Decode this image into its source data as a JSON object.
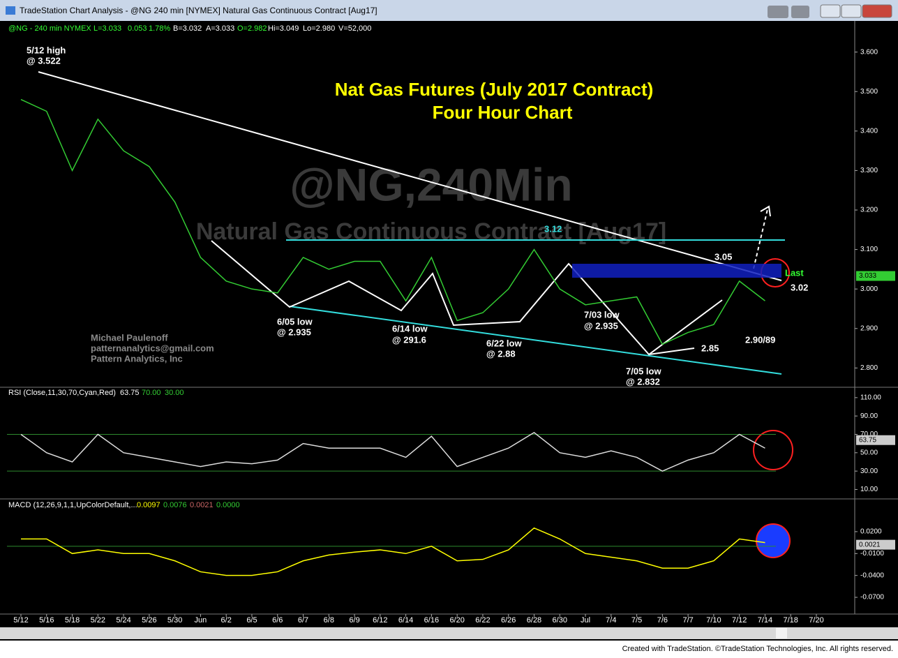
{
  "window_title": "TradeStation Chart Analysis - @NG 240 min [NYMEX] Natural Gas Continuous Contract [Aug17]",
  "header": [
    "@NG - 240 min  NYMEX",
    "L=3.033",
    "0.053",
    "1.78%",
    "B=3.032",
    "A=3.033",
    "O=2.982",
    "Hi=3.049",
    "Lo=2.980",
    "V=52,000"
  ],
  "title": [
    "Nat Gas Futures (July 2017 Contract)",
    "Four Hour Chart"
  ],
  "watermark": [
    "@NG,240Min",
    "Natural Gas Continuous Contract [Aug17]"
  ],
  "author": [
    "Michael Paulenoff",
    "patternanalytics@gmail.com",
    "Pattern Analytics, Inc"
  ],
  "annotations": [
    "5/12 high",
    "@ 3.522",
    "3.12",
    "6/05 low",
    "@ 2.935",
    "6/14 low",
    "@ 291.6",
    "6/22 low",
    "@ 2.88",
    "7/03 low",
    "@ 2.935",
    "7/05 low",
    "@ 2.832",
    "2.85",
    "2.90/89",
    "3.05",
    "Last",
    "3.02"
  ],
  "status": "Created with TradeStation. ©TradeStation Technologies, Inc. All rights reserved.",
  "chart_data": [
    {
      "type": "line",
      "categories": [
        "5/12",
        "5/16",
        "5/18",
        "5/22",
        "5/24",
        "5/26",
        "5/30",
        "Jun",
        "6/2",
        "6/5",
        "6/6",
        "6/7",
        "6/8",
        "6/9",
        "6/12",
        "6/14",
        "6/16",
        "6/20",
        "6/22",
        "6/26",
        "6/28",
        "6/30",
        "Jul",
        "7/4",
        "7/5",
        "7/6",
        "7/7",
        "7/10",
        "7/12",
        "7/14",
        "7/18",
        "7/20"
      ],
      "values": [
        3.48,
        3.45,
        3.3,
        3.43,
        3.35,
        3.31,
        3.22,
        3.08,
        3.02,
        3.0,
        2.99,
        3.08,
        3.05,
        3.07,
        3.07,
        2.97,
        3.08,
        2.92,
        2.94,
        3.0,
        3.1,
        3.0,
        2.96,
        2.97,
        2.98,
        2.86,
        2.89,
        2.91,
        3.02,
        2.97,
        null,
        null
      ],
      "color": "#33cc33",
      "last": {
        "value": 3.033,
        "label": "3.033"
      },
      "ylim": [
        2.76,
        3.67
      ],
      "yticks": [
        {
          "value": 3.6,
          "label": "3.600"
        },
        {
          "value": 3.5,
          "label": "3.500"
        },
        {
          "value": 3.4,
          "label": "3.400"
        },
        {
          "value": 3.3,
          "label": "3.300"
        },
        {
          "value": 3.2,
          "label": "3.200"
        },
        {
          "value": 3.1,
          "label": "3.100"
        },
        {
          "value": 3.0,
          "label": "3.000"
        },
        {
          "value": 2.9,
          "label": "2.900"
        },
        {
          "value": 2.8,
          "label": "2.800"
        }
      ]
    },
    {
      "type": "line",
      "title": "RSI (Close,11,30,70,Cyan,Red)",
      "values": [
        70,
        50,
        40,
        70,
        50,
        45,
        40,
        35,
        40,
        38,
        42,
        60,
        55,
        55,
        55,
        45,
        68,
        35,
        45,
        55,
        72,
        50,
        45,
        52,
        45,
        30,
        42,
        50,
        70,
        55,
        null,
        null
      ],
      "color": "#dddddd",
      "last": {
        "value": 63.75,
        "label": "63.75"
      },
      "bands": [
        {
          "value": 70,
          "label": "70.00"
        },
        {
          "value": 30,
          "label": "30.00"
        }
      ],
      "ylim": [
        2,
        119
      ],
      "yticks": [
        {
          "value": 110,
          "label": "110.00"
        },
        {
          "value": 90,
          "label": "90.00"
        },
        {
          "value": 70,
          "label": "70.00"
        },
        {
          "value": 50,
          "label": "50.00"
        },
        {
          "value": 30,
          "label": "30.00"
        },
        {
          "value": 10,
          "label": "10.00"
        }
      ]
    },
    {
      "type": "line",
      "title": "MACD (12,26,9,1,1,UpColorDefault,...",
      "readouts": [
        "0.0097",
        "0.0076",
        "0.0021"
      ],
      "values": [
        0.01,
        0.01,
        -0.01,
        -0.005,
        -0.01,
        -0.01,
        -0.02,
        -0.035,
        -0.04,
        -0.04,
        -0.035,
        -0.02,
        -0.012,
        -0.008,
        -0.005,
        -0.01,
        0.0,
        -0.02,
        -0.018,
        -0.005,
        0.025,
        0.01,
        -0.01,
        -0.015,
        -0.02,
        -0.03,
        -0.03,
        -0.02,
        0.01,
        0.005,
        null,
        null
      ],
      "color": "#ffff00",
      "last": {
        "value": 0.0021,
        "label": "0.0021"
      },
      "bands": [
        {
          "value": 0,
          "label": "0.0000"
        }
      ],
      "ylim": [
        -0.091,
        0.062
      ],
      "yticks": [
        {
          "value": 0.02,
          "label": "0.0200"
        },
        {
          "value": -0.01,
          "label": "-0.0100"
        },
        {
          "value": -0.04,
          "label": "-0.0400"
        },
        {
          "value": -0.07,
          "label": "-0.0700"
        }
      ]
    }
  ]
}
